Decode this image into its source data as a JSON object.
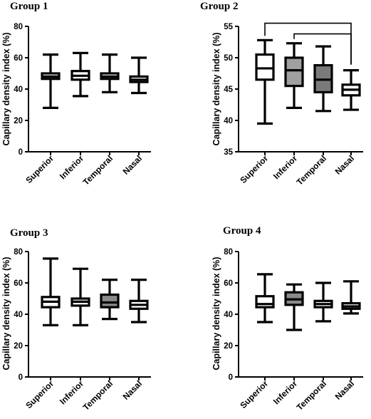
{
  "chart_data": [
    {
      "type": "box",
      "title": "Group 1",
      "ylabel": "Capillary density index (%)",
      "ylim": [
        0,
        80
      ],
      "yticks": [
        0,
        20,
        40,
        60,
        80
      ],
      "categories": [
        "Superior",
        "Inferior",
        "Temporal",
        "Nasal"
      ],
      "box_fill": [
        "#ffffff",
        "#ffffff",
        "#ffffff",
        "#ffffff"
      ],
      "boxes": [
        {
          "min": 28,
          "q1": 46.5,
          "median": 48,
          "q3": 50,
          "max": 62
        },
        {
          "min": 35.5,
          "q1": 46,
          "median": 48.5,
          "q3": 51.5,
          "max": 63
        },
        {
          "min": 38,
          "q1": 46.5,
          "median": 48,
          "q3": 50,
          "max": 62
        },
        {
          "min": 37.5,
          "q1": 44.5,
          "median": 46,
          "q3": 48,
          "max": 60
        }
      ],
      "brackets": []
    },
    {
      "type": "box",
      "title": "Group 2",
      "ylabel": "Capillary density index (%)",
      "ylim": [
        35,
        55
      ],
      "yticks": [
        35,
        40,
        45,
        50,
        55
      ],
      "categories": [
        "Superior",
        "Inferior",
        "Temporal",
        "Nasal"
      ],
      "box_fill": [
        "#ffffff",
        "#a0a0a0",
        "#7a7a7a",
        "#ffffff"
      ],
      "boxes": [
        {
          "min": 39.5,
          "q1": 46.5,
          "median": 48.3,
          "q3": 50.5,
          "max": 52.8
        },
        {
          "min": 42,
          "q1": 45.5,
          "median": 48,
          "q3": 50,
          "max": 52.3
        },
        {
          "min": 41.5,
          "q1": 44.5,
          "median": 46.5,
          "q3": 48.8,
          "max": 51.8
        },
        {
          "min": 41.7,
          "q1": 44,
          "median": 44.9,
          "q3": 45.7,
          "max": 48
        }
      ],
      "brackets": [
        {
          "from": 0,
          "to": 3,
          "level": 55.5
        },
        {
          "from": 1,
          "to": 3,
          "level": 53.8
        }
      ]
    },
    {
      "type": "box",
      "title": "Group 3",
      "ylabel": "Capillary density index (%)",
      "ylim": [
        0,
        80
      ],
      "yticks": [
        0,
        20,
        40,
        60,
        80
      ],
      "categories": [
        "Superior",
        "Inferior",
        "Temporal",
        "Nasal"
      ],
      "box_fill": [
        "#ffffff",
        "#ffffff",
        "#8a8a8a",
        "#ffffff"
      ],
      "boxes": [
        {
          "min": 33,
          "q1": 44.5,
          "median": 48,
          "q3": 51,
          "max": 75.5
        },
        {
          "min": 33,
          "q1": 45.5,
          "median": 48,
          "q3": 50,
          "max": 69
        },
        {
          "min": 37,
          "q1": 44.5,
          "median": 47.5,
          "q3": 52.5,
          "max": 62
        },
        {
          "min": 35,
          "q1": 43.5,
          "median": 46,
          "q3": 48.5,
          "max": 62
        }
      ],
      "brackets": []
    },
    {
      "type": "box",
      "title": "Group 4",
      "ylabel": "Capillary density index (%)",
      "ylim": [
        0,
        80
      ],
      "yticks": [
        0,
        20,
        40,
        60,
        80
      ],
      "categories": [
        "Superior",
        "Inferior",
        "Temporal",
        "Nasal"
      ],
      "box_fill": [
        "#ffffff",
        "#8a8a8a",
        "#ffffff",
        "#ffffff"
      ],
      "boxes": [
        {
          "min": 35,
          "q1": 44.5,
          "median": 46.5,
          "q3": 51.5,
          "max": 65.5
        },
        {
          "min": 30,
          "q1": 46,
          "median": 49.5,
          "q3": 54,
          "max": 59
        },
        {
          "min": 35.5,
          "q1": 44.5,
          "median": 46.5,
          "q3": 48.5,
          "max": 60
        },
        {
          "min": 40.5,
          "q1": 43.5,
          "median": 45,
          "q3": 47,
          "max": 61
        }
      ],
      "brackets": []
    }
  ]
}
